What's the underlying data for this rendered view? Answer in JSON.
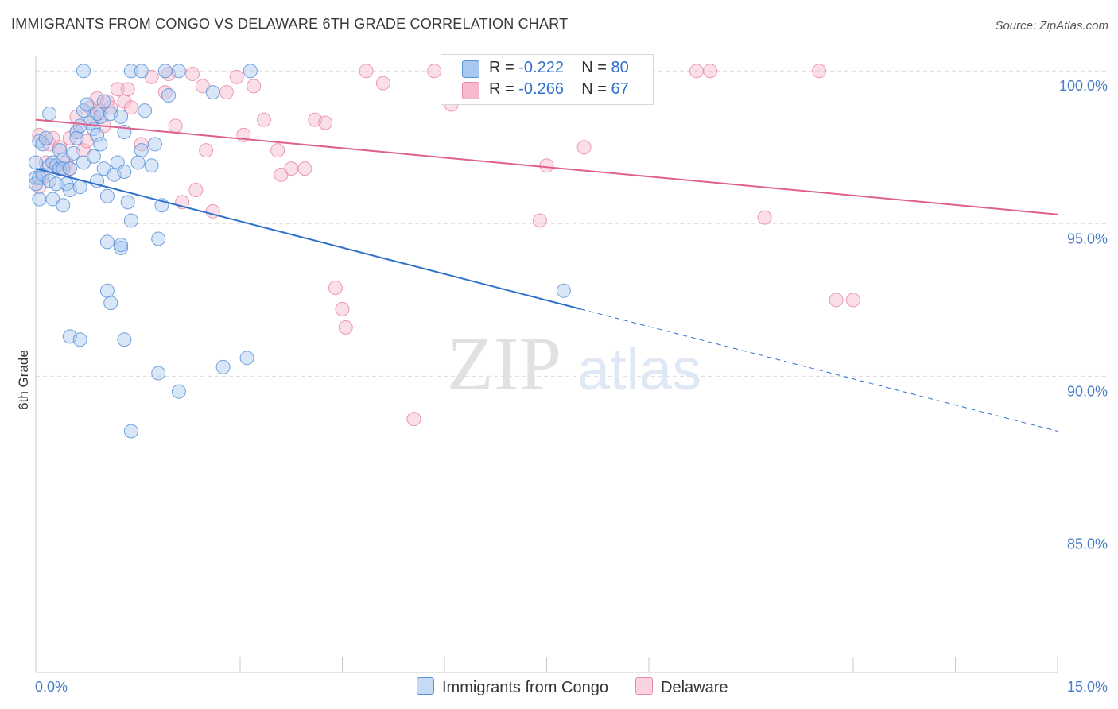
{
  "header": {
    "title": "IMMIGRANTS FROM CONGO VS DELAWARE 6TH GRADE CORRELATION CHART",
    "source": "Source: ZipAtlas.com"
  },
  "legend": {
    "series1": {
      "r_label": "R =",
      "r_value": "-0.222",
      "n_label": "N =",
      "n_value": "80"
    },
    "series2": {
      "r_label": "R =",
      "r_value": "-0.266",
      "n_label": "N =",
      "n_value": "67"
    }
  },
  "watermark": {
    "zip": "ZIP",
    "atlas": "atlas"
  },
  "colors": {
    "blue_fill": "#a9c8f0",
    "blue_stroke": "#5b93d9",
    "blue_line": "#2f6fcb",
    "pink_fill": "#f6b8cb",
    "pink_stroke": "#e98aa8",
    "pink_line": "#e0608c",
    "tick_label": "#4a7cc9",
    "grid": "#dcdcdc"
  },
  "chart_data": {
    "type": "scatter",
    "title": "IMMIGRANTS FROM CONGO VS DELAWARE 6TH GRADE CORRELATION CHART",
    "xlabel": "",
    "ylabel": "6th Grade",
    "xlim": [
      0,
      15
    ],
    "ylim": [
      80.3,
      100.5
    ],
    "x_tick_labels": [
      "0.0%",
      "15.0%"
    ],
    "y_ticks": [
      85,
      90,
      95,
      100
    ],
    "y_tick_labels": [
      "85.0%",
      "90.0%",
      "95.0%",
      "100.0%"
    ],
    "legend_position": "top-center",
    "series": [
      {
        "name": "Immigrants from Congo",
        "r": -0.222,
        "n": 80,
        "trend": {
          "x_start": 0,
          "y_start": 96.8,
          "x_solid_end": 8.0,
          "y_solid_end": 92.2,
          "x_end": 15,
          "y_end": 88.2
        },
        "points": [
          [
            0.0,
            96.5
          ],
          [
            0.0,
            96.3
          ],
          [
            0.0,
            97.0
          ],
          [
            0.05,
            97.7
          ],
          [
            0.05,
            95.8
          ],
          [
            0.05,
            96.5
          ],
          [
            0.1,
            97.6
          ],
          [
            0.1,
            96.6
          ],
          [
            0.15,
            97.8
          ],
          [
            0.2,
            96.9
          ],
          [
            0.2,
            96.4
          ],
          [
            0.2,
            98.6
          ],
          [
            0.25,
            97.0
          ],
          [
            0.25,
            95.8
          ],
          [
            0.3,
            96.9
          ],
          [
            0.3,
            96.3
          ],
          [
            0.35,
            97.4
          ],
          [
            0.35,
            96.8
          ],
          [
            0.4,
            97.1
          ],
          [
            0.4,
            96.8
          ],
          [
            0.4,
            95.6
          ],
          [
            0.45,
            96.3
          ],
          [
            0.5,
            96.8
          ],
          [
            0.5,
            96.1
          ],
          [
            0.55,
            97.3
          ],
          [
            0.6,
            98.0
          ],
          [
            0.6,
            97.8
          ],
          [
            0.65,
            96.2
          ],
          [
            0.7,
            97.0
          ],
          [
            0.7,
            98.7
          ],
          [
            0.75,
            98.9
          ],
          [
            0.8,
            98.3
          ],
          [
            0.85,
            98.1
          ],
          [
            0.85,
            97.2
          ],
          [
            0.9,
            97.9
          ],
          [
            0.95,
            98.5
          ],
          [
            0.95,
            97.6
          ],
          [
            1.0,
            96.8
          ],
          [
            1.05,
            95.9
          ],
          [
            1.1,
            98.6
          ],
          [
            1.15,
            96.6
          ],
          [
            1.2,
            97.0
          ],
          [
            1.25,
            94.2
          ],
          [
            1.3,
            96.7
          ],
          [
            1.35,
            95.7
          ],
          [
            1.4,
            95.1
          ],
          [
            1.55,
            97.4
          ],
          [
            1.6,
            98.7
          ],
          [
            1.7,
            96.9
          ],
          [
            1.75,
            97.6
          ],
          [
            1.8,
            94.5
          ],
          [
            1.85,
            95.6
          ],
          [
            1.4,
            88.2
          ],
          [
            1.05,
            92.8
          ],
          [
            1.1,
            92.4
          ],
          [
            0.5,
            91.3
          ],
          [
            0.65,
            91.2
          ],
          [
            1.3,
            91.2
          ],
          [
            1.8,
            90.1
          ],
          [
            2.1,
            89.5
          ],
          [
            1.05,
            94.4
          ],
          [
            1.25,
            94.3
          ],
          [
            0.7,
            100.0
          ],
          [
            1.4,
            100.0
          ],
          [
            1.55,
            100.0
          ],
          [
            1.9,
            100.0
          ],
          [
            2.1,
            100.0
          ],
          [
            3.15,
            100.0
          ],
          [
            2.6,
            99.3
          ],
          [
            1.95,
            99.2
          ],
          [
            0.9,
            98.6
          ],
          [
            1.0,
            99.0
          ],
          [
            0.65,
            98.2
          ],
          [
            1.25,
            98.5
          ],
          [
            1.3,
            98.0
          ],
          [
            1.5,
            97.0
          ],
          [
            2.75,
            90.3
          ],
          [
            3.1,
            90.6
          ],
          [
            7.75,
            92.8
          ],
          [
            0.9,
            96.4
          ]
        ]
      },
      {
        "name": "Delaware",
        "r": -0.266,
        "n": 67,
        "trend": {
          "x_start": 0,
          "y_start": 98.4,
          "x_end": 15,
          "y_end": 95.3
        },
        "points": [
          [
            0.05,
            97.9
          ],
          [
            0.05,
            96.2
          ],
          [
            0.1,
            96.5
          ],
          [
            0.15,
            97.0
          ],
          [
            0.2,
            97.6
          ],
          [
            0.25,
            97.8
          ],
          [
            0.3,
            96.9
          ],
          [
            0.35,
            97.5
          ],
          [
            0.4,
            96.8
          ],
          [
            0.45,
            97.0
          ],
          [
            0.5,
            97.8
          ],
          [
            0.5,
            96.8
          ],
          [
            0.6,
            98.0
          ],
          [
            0.7,
            97.4
          ],
          [
            0.75,
            97.7
          ],
          [
            0.8,
            98.8
          ],
          [
            0.85,
            98.5
          ],
          [
            0.9,
            99.1
          ],
          [
            0.95,
            98.7
          ],
          [
            1.0,
            98.2
          ],
          [
            1.05,
            99.0
          ],
          [
            1.1,
            98.8
          ],
          [
            1.2,
            99.4
          ],
          [
            1.3,
            99.0
          ],
          [
            1.35,
            99.4
          ],
          [
            1.4,
            98.8
          ],
          [
            1.55,
            97.6
          ],
          [
            1.7,
            99.8
          ],
          [
            1.9,
            99.3
          ],
          [
            1.95,
            99.9
          ],
          [
            2.05,
            98.2
          ],
          [
            2.15,
            95.7
          ],
          [
            2.3,
            99.9
          ],
          [
            2.35,
            96.1
          ],
          [
            2.45,
            99.5
          ],
          [
            2.5,
            97.4
          ],
          [
            2.6,
            95.4
          ],
          [
            2.8,
            99.3
          ],
          [
            2.95,
            99.8
          ],
          [
            3.05,
            97.9
          ],
          [
            3.2,
            99.5
          ],
          [
            3.35,
            98.4
          ],
          [
            3.55,
            97.4
          ],
          [
            3.6,
            96.6
          ],
          [
            3.75,
            96.8
          ],
          [
            3.95,
            96.8
          ],
          [
            4.1,
            98.4
          ],
          [
            4.25,
            98.3
          ],
          [
            4.4,
            92.9
          ],
          [
            4.5,
            92.2
          ],
          [
            4.55,
            91.6
          ],
          [
            4.85,
            100.0
          ],
          [
            5.1,
            99.6
          ],
          [
            5.55,
            88.6
          ],
          [
            5.85,
            100.0
          ],
          [
            6.1,
            98.9
          ],
          [
            6.45,
            100.0
          ],
          [
            7.4,
            95.1
          ],
          [
            7.5,
            96.9
          ],
          [
            8.05,
            97.5
          ],
          [
            9.7,
            100.0
          ],
          [
            9.9,
            100.0
          ],
          [
            10.7,
            95.2
          ],
          [
            11.5,
            100.0
          ],
          [
            11.75,
            92.5
          ],
          [
            12.0,
            92.5
          ],
          [
            0.6,
            98.5
          ]
        ]
      }
    ]
  }
}
